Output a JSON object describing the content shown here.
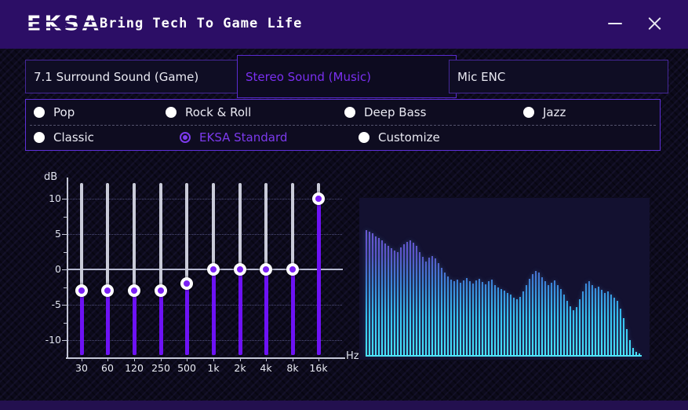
{
  "window": {
    "logo": "EKSA",
    "tagline": "Bring Tech To Game Life"
  },
  "tabs": [
    {
      "id": "surround",
      "label": "7.1 Surround Sound (Game)",
      "active": false
    },
    {
      "id": "stereo",
      "label": "Stereo Sound (Music)",
      "active": true
    },
    {
      "id": "mic-enc",
      "label": "Mic ENC",
      "active": false
    }
  ],
  "presets": {
    "rows": [
      [
        {
          "label": "Pop",
          "selected": false
        },
        {
          "label": "Rock & Roll",
          "selected": false
        },
        {
          "label": "Deep Bass",
          "selected": false
        },
        {
          "label": "Jazz",
          "selected": false
        }
      ],
      [
        {
          "label": "Classic",
          "selected": false
        },
        {
          "label": "EKSA Standard",
          "selected": true
        },
        {
          "label": "Customize",
          "selected": false
        }
      ]
    ]
  },
  "colors": {
    "accent": "#7c3aed",
    "header_bg": "#2c0e66",
    "panel_border": "#5e30d8",
    "slider_fill": "#6d12f5",
    "track_gray": "#c9cbd8",
    "spectrum_baseline": "#4fe3fa"
  },
  "chart_data": [
    {
      "type": "slider-eq",
      "title": "10-band equalizer",
      "categories": [
        "30",
        "60",
        "120",
        "250",
        "500",
        "1k",
        "2k",
        "4k",
        "8k",
        "16k"
      ],
      "values": [
        -3,
        -3,
        -3,
        -3,
        -2,
        0,
        0,
        0,
        0,
        10
      ],
      "ylabel": "dB",
      "xlabel": "Hz",
      "yticks": [
        10,
        5,
        0,
        -5,
        -10
      ],
      "ylim": [
        -12.5,
        12.5
      ],
      "grid": "dotted horizontal lines, solid line at 0 dB",
      "legend": "none"
    },
    {
      "type": "bar",
      "title": "live audio spectrum",
      "values": [
        160,
        158,
        156,
        152,
        150,
        147,
        143,
        140,
        137,
        134,
        132,
        138,
        142,
        145,
        147,
        144,
        140,
        132,
        126,
        120,
        125,
        127,
        124,
        118,
        112,
        106,
        101,
        97,
        95,
        97,
        93,
        96,
        99,
        95,
        92,
        96,
        98,
        94,
        91,
        95,
        97,
        90,
        87,
        85,
        83,
        80,
        78,
        74,
        72,
        75,
        82,
        90,
        98,
        104,
        108,
        106,
        100,
        95,
        90,
        93,
        96,
        90,
        85,
        78,
        70,
        63,
        58,
        62,
        72,
        82,
        92,
        95,
        90,
        86,
        88,
        84,
        80,
        82,
        78,
        74,
        70,
        60,
        48,
        34,
        20,
        10,
        5,
        3
      ],
      "ylim": [
        0,
        165
      ],
      "xlabel": "",
      "ylabel": "",
      "bar_gradient_bottom_to_top": [
        "#47e2fa",
        "#35c2f0",
        "#3a86d8",
        "#6d59d6"
      ],
      "legend": "none"
    }
  ]
}
